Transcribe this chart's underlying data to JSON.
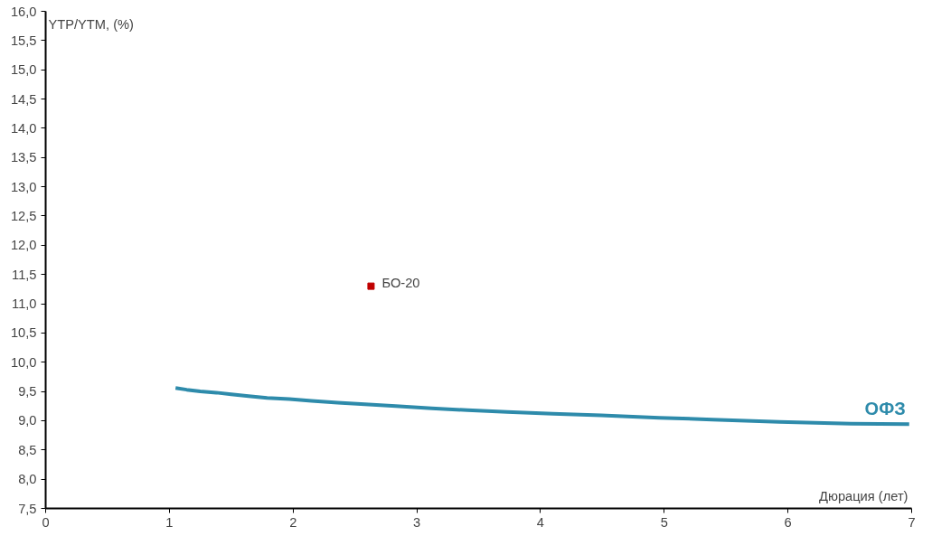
{
  "chart_data": {
    "type": "line",
    "xlabel": "Дюрация (лет)",
    "ylabel": "YTP/YTM, (%)",
    "xlim": [
      0,
      7
    ],
    "xticks": [
      0,
      1,
      2,
      3,
      4,
      5,
      6,
      7
    ],
    "ylim": [
      7.5,
      16
    ],
    "yticks": [
      {
        "value": 7.5,
        "label": "7,5"
      },
      {
        "value": 8,
        "label": "8,0"
      },
      {
        "value": 8.5,
        "label": "8,5"
      },
      {
        "value": 9,
        "label": "9,0"
      },
      {
        "value": 9.5,
        "label": "9,5"
      },
      {
        "value": 10,
        "label": "10,0"
      },
      {
        "value": 10.5,
        "label": "10,5"
      },
      {
        "value": 11,
        "label": "11,0"
      },
      {
        "value": 11.5,
        "label": "11,5"
      },
      {
        "value": 12,
        "label": "12,0"
      },
      {
        "value": 12.5,
        "label": "12,5"
      },
      {
        "value": 13,
        "label": "13,0"
      },
      {
        "value": 13.5,
        "label": "13,5"
      },
      {
        "value": 14,
        "label": "14,0"
      },
      {
        "value": 14.5,
        "label": "14,5"
      },
      {
        "value": 15,
        "label": "15,0"
      },
      {
        "value": 15.5,
        "label": "15,5"
      },
      {
        "value": 16,
        "label": "16,0"
      }
    ],
    "grid": false,
    "legend": false,
    "series": [
      {
        "name": "ОФЗ",
        "color": "#2e8bab",
        "x": [
          1.05,
          1.14,
          1.25,
          1.38,
          1.5,
          1.64,
          1.79,
          1.97,
          2.15,
          2.36,
          2.58,
          2.83,
          3.12,
          3.41,
          3.73,
          4.1,
          4.49,
          4.96,
          5.39,
          5.93,
          6.51,
          6.98
        ],
        "values": [
          9.56,
          9.53,
          9.5,
          9.48,
          9.45,
          9.42,
          9.39,
          9.37,
          9.34,
          9.31,
          9.28,
          9.25,
          9.21,
          9.18,
          9.15,
          9.12,
          9.09,
          9.05,
          9.02,
          8.98,
          8.95,
          8.94
        ]
      },
      {
        "name": "БО-20",
        "type": "scatter",
        "color": "#c00000",
        "marker": "square",
        "x": [
          2.63
        ],
        "values": [
          11.3
        ]
      }
    ]
  }
}
